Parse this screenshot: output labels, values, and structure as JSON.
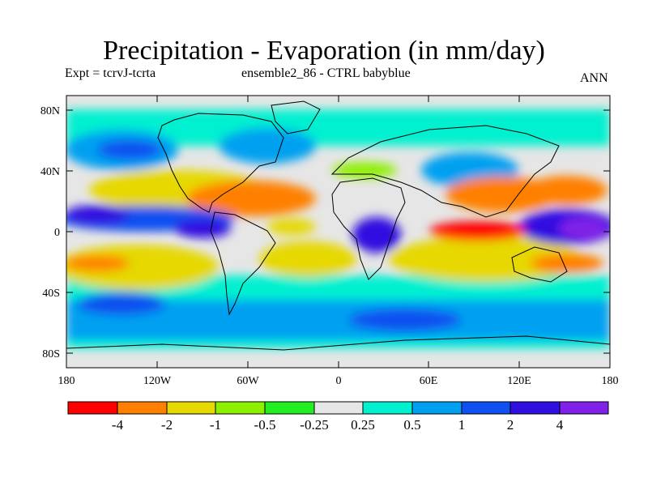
{
  "header": {
    "title": "Precipitation - Evaporation (in mm/day)",
    "experiment": "Expt = tcrvJ-tcrta",
    "ensemble": "ensemble2_86 - CTRL babyblue",
    "season": "ANN"
  },
  "map_axes": {
    "lat_labels": [
      "80N",
      "40N",
      "0",
      "40S",
      "80S"
    ],
    "lon_labels": [
      "180",
      "120W",
      "60W",
      "0",
      "60E",
      "120E",
      "180"
    ]
  },
  "colorbar": {
    "colors": [
      "#ff0000",
      "#ff8000",
      "#e6d800",
      "#8cf000",
      "#22ee22",
      "#e6e6e6",
      "#00f0d0",
      "#00a0f0",
      "#1050f0",
      "#3010e0",
      "#8020e8"
    ],
    "labels": [
      "-4",
      "-2",
      "-1",
      "-0.5",
      "-0.25",
      "0.25",
      "0.5",
      "1",
      "2",
      "4"
    ]
  }
}
